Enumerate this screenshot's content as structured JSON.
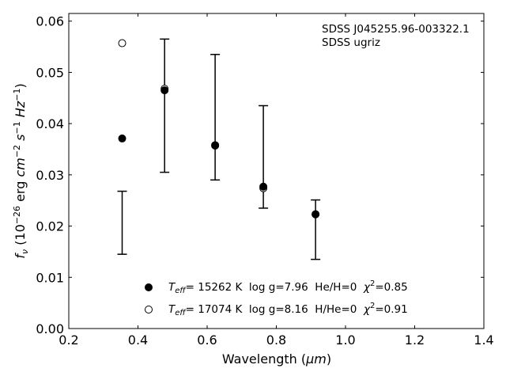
{
  "chart_data": {
    "type": "scatter",
    "xlabel_main": "Wavelength (",
    "xlabel_unit": "μm",
    "xlabel_end": ")",
    "ylabel": {
      "f": "f",
      "nu": "ν",
      "open": " (10",
      "exp1": "−26",
      "erg": " erg ",
      "cm": "cm",
      "exp2": "−2",
      "s": " s",
      "exp3": "−1",
      "hz": " Hz",
      "exp4": "−1",
      "close": ")"
    },
    "xlim": [
      0.2,
      1.4
    ],
    "ylim": [
      0.0,
      0.0615
    ],
    "xticks": [
      0.2,
      0.4,
      0.6,
      0.8,
      1.0,
      1.2,
      1.4
    ],
    "xtick_labels": [
      "0.2",
      "0.4",
      "0.6",
      "0.8",
      "1.0",
      "1.2",
      "1.4"
    ],
    "yticks": [
      0.0,
      0.01,
      0.02,
      0.03,
      0.04,
      0.05,
      0.06
    ],
    "ytick_labels": [
      "0.00",
      "0.01",
      "0.02",
      "0.03",
      "0.04",
      "0.05",
      "0.06"
    ],
    "annotation": [
      "SDSS J045255.96-003322.1",
      "SDSS ugriz"
    ],
    "observed": {
      "x": [
        0.3543,
        0.477,
        0.6231,
        0.7625,
        0.9134
      ],
      "low": [
        0.0145,
        0.0305,
        0.029,
        0.0235,
        0.0135
      ],
      "high": [
        0.0268,
        0.0565,
        0.0535,
        0.0435,
        0.0251
      ]
    },
    "series": [
      {
        "style": "filled",
        "x": [
          0.3543,
          0.477,
          0.6231,
          0.7625,
          0.9134
        ],
        "values": [
          0.0371,
          0.0465,
          0.0358,
          0.0277,
          0.0223
        ],
        "legend": {
          "T": "T",
          "eff": "eff",
          "text": "= 15262 K  log g=7.96  He/H=0  ",
          "chi": "χ",
          "chi_exp": "2",
          "chi_val": "=0.85"
        }
      },
      {
        "style": "open",
        "x": [
          0.3543,
          0.477,
          0.6231,
          0.7625,
          0.9134
        ],
        "values": [
          0.0557,
          0.0468,
          0.0357,
          0.0274,
          0.0223
        ],
        "legend": {
          "T": "T",
          "eff": "eff",
          "text": "= 17074 K  log g=8.16  H/He=0  ",
          "chi": "χ",
          "chi_exp": "2",
          "chi_val": "=0.91"
        }
      }
    ],
    "legend_position": "lower-center"
  }
}
